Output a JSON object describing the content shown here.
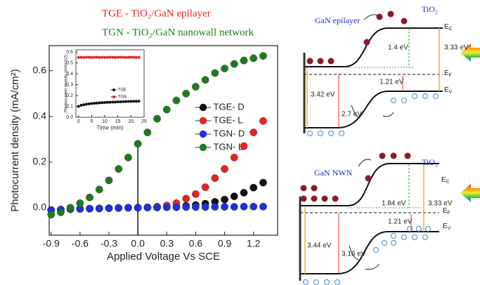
{
  "chart_data": [
    {
      "type": "scatter",
      "x_label": "Applied Voltage Vs SCE",
      "y_label": "Photocurrent density (mA/cm²)",
      "annotations": [
        "TGE - TiO₂/GaN epilayer",
        "TGN - TiO₂/GaN nanowall network"
      ],
      "x": [
        -0.9,
        -0.8,
        -0.7,
        -0.6,
        -0.5,
        -0.4,
        -0.3,
        -0.2,
        -0.1,
        0,
        0.1,
        0.2,
        0.3,
        0.4,
        0.5,
        0.6,
        0.7,
        0.8,
        0.9,
        1.0,
        1.1,
        1.2,
        1.3
      ],
      "series": [
        {
          "name": "TGE- D",
          "color": "#111111",
          "values": [
            -0.01,
            -0.008,
            -0.006,
            -0.005,
            -0.004,
            -0.003,
            -0.002,
            -0.001,
            0,
            0,
            0.001,
            0.002,
            0.003,
            0.005,
            0.008,
            0.012,
            0.018,
            0.026,
            0.036,
            0.05,
            0.066,
            0.088,
            0.11
          ]
        },
        {
          "name": "TGE- L",
          "color": "#e8231f",
          "values": [
            -0.01,
            -0.008,
            -0.006,
            -0.005,
            -0.004,
            -0.003,
            -0.002,
            -0.001,
            0,
            0,
            0.002,
            0.005,
            0.01,
            0.02,
            0.04,
            0.06,
            0.09,
            0.13,
            0.17,
            0.22,
            0.27,
            0.33,
            0.38
          ]
        },
        {
          "name": "TGN- D",
          "color": "#1f2fe0",
          "values": [
            -0.01,
            -0.008,
            -0.006,
            -0.005,
            -0.004,
            -0.003,
            -0.002,
            -0.001,
            0,
            0,
            0.001,
            0.001,
            0.002,
            0.002,
            0.003,
            0.003,
            0.003,
            0.004,
            0.004,
            0.004,
            0.005,
            0.005,
            0.005
          ]
        },
        {
          "name": "TGN- L",
          "color": "#1f7a1f",
          "values": [
            -0.03,
            -0.02,
            0,
            0.02,
            0.045,
            0.08,
            0.12,
            0.17,
            0.22,
            0.28,
            0.33,
            0.39,
            0.43,
            0.47,
            0.5,
            0.53,
            0.56,
            0.59,
            0.61,
            0.63,
            0.645,
            0.655,
            0.665
          ]
        }
      ],
      "xlim": [
        -0.92,
        1.45
      ],
      "ylim": [
        -0.12,
        0.71
      ],
      "xticks": [
        -0.9,
        -0.6,
        -0.3,
        {
          "value": 0,
          "label": "0.0"
        },
        0.3,
        0.6,
        0.9,
        1.2
      ],
      "yticks": [
        {
          "value": 0,
          "label": "0.0"
        },
        0.2,
        0.4,
        0.6
      ]
    },
    {
      "type": "scatter",
      "x_label": "Time (min)",
      "y_label": "Photocurrent density (mA/cm2)",
      "x": [
        0,
        1,
        2,
        3,
        4,
        5,
        6,
        7,
        8,
        9,
        10,
        11,
        12,
        13,
        14,
        15,
        16,
        17,
        18,
        19,
        20,
        21,
        22,
        23
      ],
      "series": [
        {
          "name": "TGE",
          "color": "#111111",
          "values": [
            0.1,
            0.11,
            0.115,
            0.12,
            0.123,
            0.126,
            0.128,
            0.13,
            0.132,
            0.134,
            0.135,
            0.137,
            0.138,
            0.139,
            0.14,
            0.141,
            0.142,
            0.143,
            0.144,
            0.145,
            0.146,
            0.146,
            0.147,
            0.148
          ]
        },
        {
          "name": "TGN",
          "color": "#e8231f",
          "values": [
            0.55,
            0.551,
            0.55,
            0.552,
            0.551,
            0.55,
            0.551,
            0.552,
            0.55,
            0.551,
            0.55,
            0.551,
            0.552,
            0.551,
            0.55,
            0.551,
            0.552,
            0.551,
            0.55,
            0.551,
            0.552,
            0.551,
            0.55,
            0.551
          ]
        }
      ],
      "xlim": [
        -1,
        25
      ],
      "ylim": [
        0,
        0.62
      ],
      "xticks": [
        0,
        5,
        10,
        15,
        20,
        25
      ],
      "yticks": [
        {
          "value": 0,
          "label": "0.0"
        },
        0.1,
        0.2,
        0.3,
        0.4,
        0.5,
        0.6
      ]
    }
  ],
  "band_diagrams": [
    {
      "material": "GaN epilayer",
      "oxide": "TiO₂",
      "ec": "E",
      "ec_sub": "C",
      "ef": "E",
      "ef_sub": "F",
      "ev": "E",
      "ev_sub": "V",
      "cb_offset": "1.4 eV",
      "oxide_gap": "3.33 eV",
      "vb_offset": "1.21 eV",
      "gan_gap": "3.42 eV",
      "gan_level": "2.7 eV"
    },
    {
      "material": "GaN NWN",
      "oxide": "TiO₂",
      "ec": "E",
      "ec_sub": "C",
      "ef": "E",
      "ef_sub": "F",
      "ev": "E",
      "ev_sub": "V",
      "cb_offset": "1.84 eV",
      "oxide_gap": "3.33 eV",
      "vb_offset": "1.21 eV",
      "gan_gap": "3.44 eV",
      "gan_level": "3.16 eV"
    }
  ]
}
